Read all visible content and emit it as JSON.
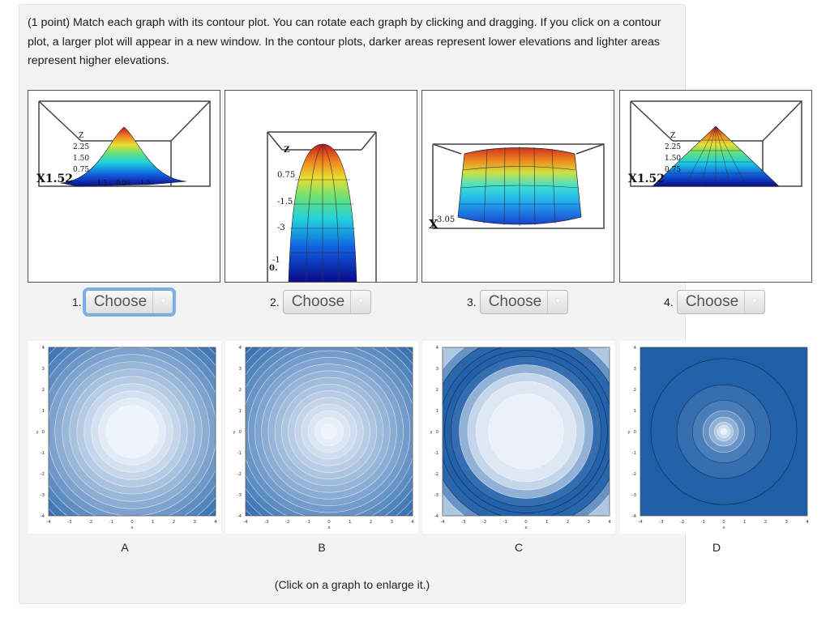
{
  "problem": {
    "text": "(1 point) Match each graph with its contour plot. You can rotate each graph by clicking and dragging. If you click on a contour plot, a larger plot will appear in a new window. In the contour plots, darker areas represent lower elevations and lighter areas represent higher elevations."
  },
  "graphs": [
    {
      "number": "1.",
      "select_value": "Choose",
      "axis_labels": [
        "Z",
        "2.25",
        "1.50",
        "0.75",
        "X1.52",
        "-1.5",
        "0.00",
        "1.5"
      ]
    },
    {
      "number": "2.",
      "select_value": "Choose",
      "axis_labels": [
        "Z",
        "0.75",
        "-1.5",
        "-3",
        "0.",
        "-1"
      ]
    },
    {
      "number": "3.",
      "select_value": "Choose",
      "axis_labels": [
        "X",
        "3.05"
      ]
    },
    {
      "number": "4.",
      "select_value": "Choose",
      "axis_labels": [
        "Z",
        "2.25",
        "1.50",
        "0.75",
        "X1.52"
      ]
    }
  ],
  "select_options": [
    "Choose"
  ],
  "contours": [
    {
      "letter": "A",
      "xlabel": "x",
      "ylabel": "y",
      "ticks": [
        "-4",
        "-3",
        "-2",
        "-1",
        "0",
        "1",
        "2",
        "3",
        "4"
      ]
    },
    {
      "letter": "B",
      "xlabel": "x",
      "ylabel": "y",
      "ticks": [
        "-4",
        "-3",
        "-2",
        "-1",
        "0",
        "1",
        "2",
        "3",
        "4"
      ]
    },
    {
      "letter": "C",
      "xlabel": "x",
      "ylabel": "y",
      "ticks": [
        "-4",
        "-3",
        "-2",
        "-1",
        "0",
        "1",
        "2",
        "3",
        "4"
      ]
    },
    {
      "letter": "D",
      "xlabel": "x",
      "ylabel": "y",
      "ticks": [
        "-4",
        "-3",
        "-2",
        "-1",
        "0",
        "1",
        "2",
        "3",
        "4"
      ]
    }
  ],
  "hint": "(Click on a graph to enlarge it.)",
  "colors": {
    "panel_bg": "#f3f3f3",
    "focus_ring": "#7db0e8",
    "contour_dark": "#1f5fa8",
    "contour_light": "#eef4fb"
  }
}
